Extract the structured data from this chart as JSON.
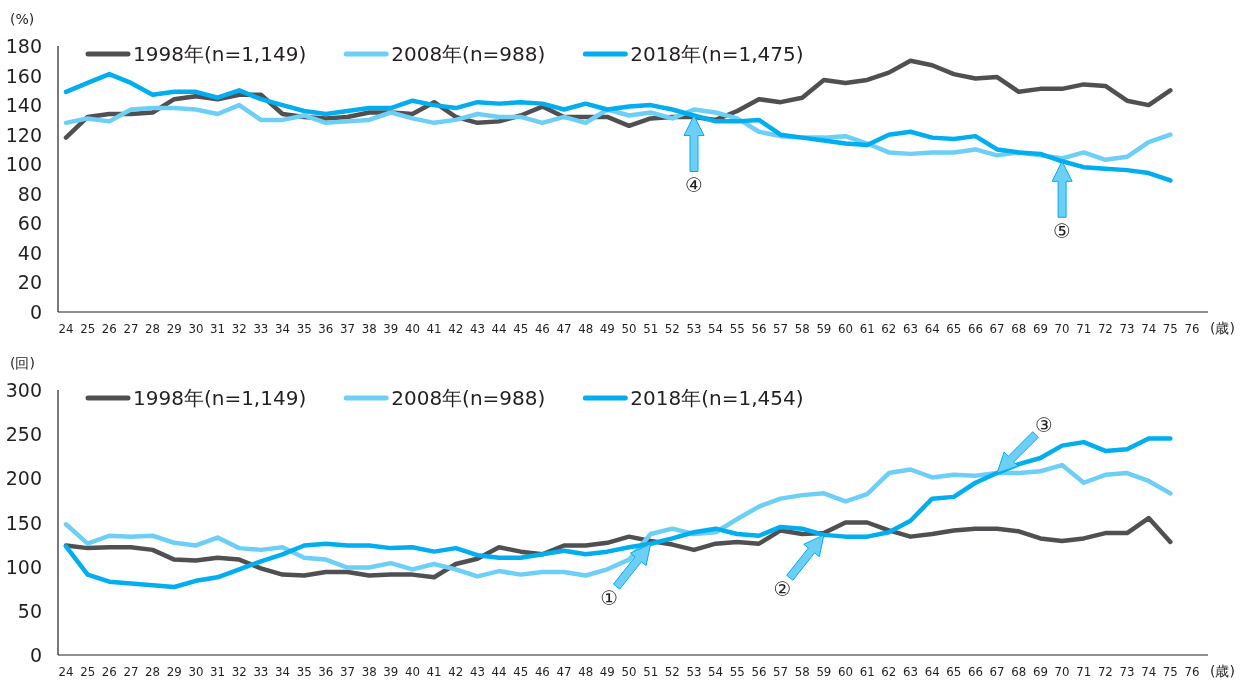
{
  "chart_data": [
    {
      "type": "line",
      "ylabel": "(%)",
      "xlabel": "(歳)",
      "legend": "top",
      "ylim": [
        0,
        180
      ],
      "yticks": [
        0,
        20,
        40,
        60,
        80,
        100,
        120,
        140,
        160,
        180
      ],
      "categories": [
        "24",
        "25",
        "26",
        "27",
        "28",
        "29",
        "30",
        "31",
        "32",
        "33",
        "34",
        "35",
        "36",
        "37",
        "38",
        "39",
        "40",
        "41",
        "42",
        "43",
        "44",
        "45",
        "46",
        "47",
        "48",
        "49",
        "50",
        "51",
        "52",
        "53",
        "54",
        "55",
        "56",
        "57",
        "58",
        "59",
        "60",
        "61",
        "62",
        "63",
        "64",
        "65",
        "66",
        "67",
        "68",
        "69",
        "70",
        "71",
        "72",
        "73",
        "74",
        "75",
        "76"
      ],
      "series": [
        {
          "name": "1998年(n=1,149)",
          "color": "#505052",
          "values": [
            118,
            132,
            134,
            134,
            135,
            144,
            146,
            144,
            147,
            147,
            134,
            132,
            131,
            132,
            135,
            135,
            134,
            142,
            132,
            128,
            129,
            133,
            139,
            132,
            132,
            132,
            126,
            131,
            132,
            132,
            130,
            136,
            144,
            142,
            145,
            157,
            155,
            157,
            162,
            170,
            167,
            161,
            158,
            159,
            149,
            151,
            151,
            154,
            153,
            143,
            140,
            150,
            null
          ]
        },
        {
          "name": "2008年(n=988)",
          "color": "#6dcff6",
          "values": [
            128,
            131,
            129,
            137,
            138,
            138,
            137,
            134,
            140,
            130,
            130,
            133,
            128,
            129,
            130,
            135,
            131,
            128,
            130,
            134,
            132,
            132,
            128,
            132,
            128,
            137,
            133,
            135,
            131,
            137,
            135,
            131,
            122,
            119,
            118,
            118,
            119,
            114,
            108,
            107,
            108,
            108,
            110,
            106,
            108,
            106,
            104,
            108,
            103,
            105,
            115,
            120,
            null
          ]
        },
        {
          "name": "2018年(n=1,475)",
          "color": "#00aeef",
          "values": [
            149,
            155,
            161,
            155,
            147,
            149,
            149,
            145,
            150,
            144,
            140,
            136,
            134,
            136,
            138,
            138,
            143,
            140,
            138,
            142,
            141,
            142,
            141,
            137,
            141,
            137,
            139,
            140,
            137,
            133,
            129,
            129,
            130,
            120,
            118,
            116,
            114,
            113,
            120,
            122,
            118,
            117,
            119,
            110,
            108,
            107,
            102,
            98,
            97,
            96,
            94,
            89,
            null
          ]
        }
      ],
      "annotations": [
        {
          "text": "④",
          "x": "53",
          "y": 133
        },
        {
          "text": "⑤",
          "x": "70",
          "y": 102
        }
      ]
    },
    {
      "type": "line",
      "ylabel": "(回)",
      "xlabel": "(歳)",
      "legend": "top",
      "ylim": [
        0,
        300
      ],
      "yticks": [
        0,
        50,
        100,
        150,
        200,
        250,
        300
      ],
      "categories": [
        "24",
        "25",
        "26",
        "27",
        "28",
        "29",
        "30",
        "31",
        "32",
        "33",
        "34",
        "35",
        "36",
        "37",
        "38",
        "39",
        "40",
        "41",
        "42",
        "43",
        "44",
        "45",
        "46",
        "47",
        "48",
        "49",
        "50",
        "51",
        "52",
        "53",
        "54",
        "55",
        "56",
        "57",
        "58",
        "59",
        "60",
        "61",
        "62",
        "63",
        "64",
        "65",
        "66",
        "67",
        "68",
        "69",
        "70",
        "71",
        "72",
        "73",
        "74",
        "75",
        "76"
      ],
      "series": [
        {
          "name": "1998年(n=1,149)",
          "color": "#505052",
          "values": [
            124,
            121,
            122,
            122,
            119,
            108,
            107,
            110,
            108,
            98,
            91,
            90,
            94,
            94,
            90,
            91,
            91,
            88,
            103,
            109,
            122,
            117,
            114,
            124,
            124,
            127,
            134,
            129,
            125,
            119,
            126,
            128,
            126,
            141,
            137,
            138,
            150,
            150,
            141,
            134,
            137,
            141,
            143,
            143,
            140,
            132,
            129,
            132,
            138,
            138,
            155,
            128,
            null
          ]
        },
        {
          "name": "2008年(n=988)",
          "color": "#6dcff6",
          "values": [
            148,
            126,
            135,
            134,
            135,
            127,
            124,
            133,
            121,
            119,
            122,
            110,
            108,
            99,
            99,
            104,
            97,
            103,
            97,
            89,
            95,
            91,
            94,
            94,
            90,
            97,
            108,
            137,
            143,
            137,
            139,
            154,
            168,
            177,
            181,
            183,
            174,
            182,
            206,
            210,
            201,
            204,
            203,
            206,
            206,
            208,
            215,
            195,
            204,
            206,
            197,
            183,
            null
          ]
        },
        {
          "name": "2018年(n=1,454)",
          "color": "#00aeef",
          "values": [
            123,
            91,
            83,
            81,
            79,
            77,
            84,
            88,
            97,
            106,
            114,
            124,
            126,
            124,
            124,
            121,
            122,
            117,
            121,
            113,
            110,
            110,
            114,
            118,
            114,
            117,
            122,
            126,
            132,
            139,
            143,
            137,
            135,
            145,
            143,
            136,
            134,
            134,
            139,
            152,
            177,
            179,
            195,
            206,
            216,
            223,
            237,
            241,
            231,
            233,
            245,
            245,
            null
          ]
        }
      ],
      "annotations": [
        {
          "text": "①",
          "x": "51",
          "y": 126
        },
        {
          "text": "②",
          "x": "59",
          "y": 136
        },
        {
          "text": "③",
          "x": "67",
          "y": 206
        }
      ]
    }
  ]
}
